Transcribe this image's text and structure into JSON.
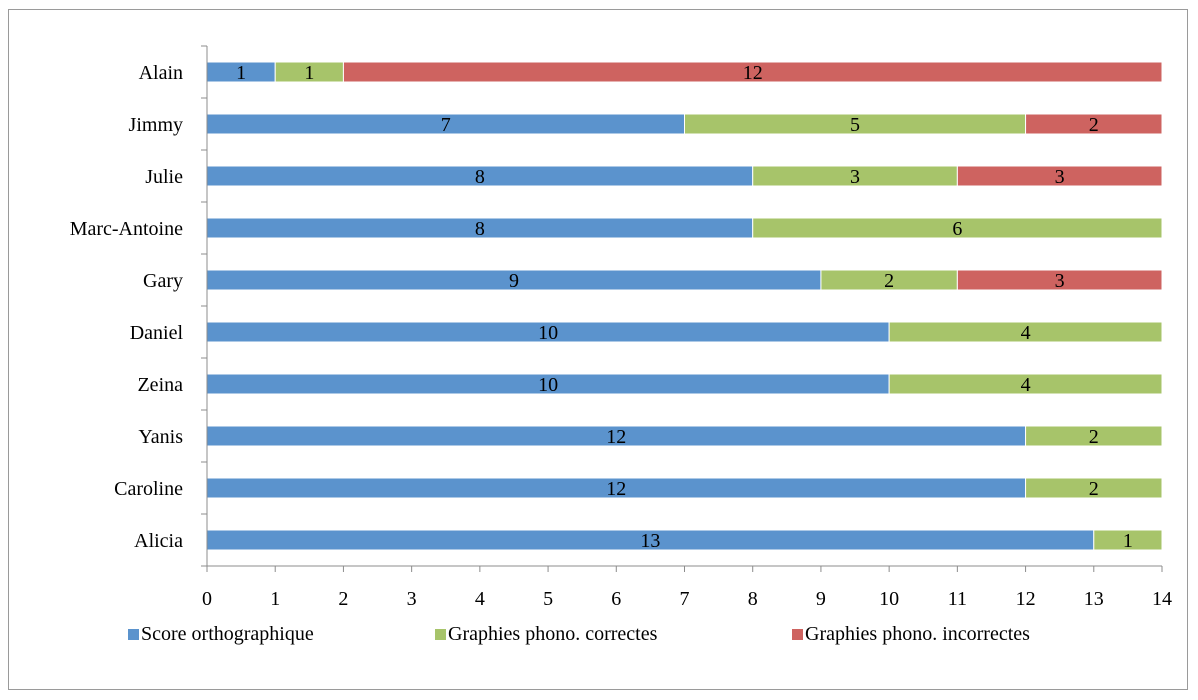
{
  "chart_data": {
    "type": "bar",
    "orientation": "horizontal",
    "stacked": true,
    "title": "",
    "xlabel": "",
    "ylabel": "",
    "xlim": [
      0,
      14
    ],
    "x_ticks": [
      0,
      1,
      2,
      3,
      4,
      5,
      6,
      7,
      8,
      9,
      10,
      11,
      12,
      13,
      14
    ],
    "grid": false,
    "legend_position": "bottom",
    "categories": [
      "Alain",
      "Jimmy",
      "Julie",
      "Marc-Antoine",
      "Gary",
      "Daniel",
      "Zeina",
      "Yanis",
      "Caroline",
      "Alicia"
    ],
    "series": [
      {
        "name": "Score orthographique",
        "color": "#5b93cd",
        "values": [
          1,
          7,
          8,
          8,
          9,
          10,
          10,
          12,
          12,
          13
        ]
      },
      {
        "name": "Graphies phono. correctes",
        "color": "#a7c46a",
        "values": [
          1,
          5,
          3,
          6,
          2,
          4,
          4,
          2,
          2,
          1
        ]
      },
      {
        "name": "Graphies phono. incorrectes",
        "color": "#ce6360",
        "values": [
          12,
          2,
          3,
          0,
          3,
          0,
          0,
          0,
          0,
          0
        ]
      }
    ]
  }
}
